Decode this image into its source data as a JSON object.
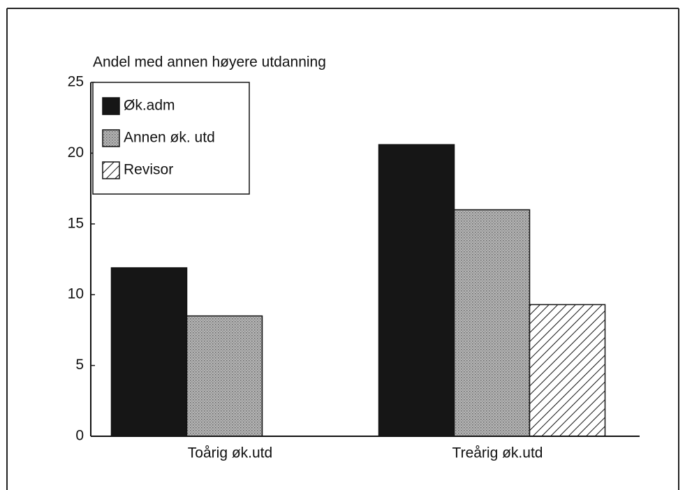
{
  "chart_data": {
    "type": "bar",
    "title": "Andel med annen høyere utdanning",
    "categories": [
      "Toårig øk.utd",
      "Treårig øk.utd"
    ],
    "series": [
      {
        "name": "Øk.adm",
        "color": "#161616",
        "values": [
          11.9,
          20.6
        ]
      },
      {
        "name": "Annen øk. utd",
        "color": "#a8a8a8",
        "pattern": "stipple",
        "values": [
          8.5,
          16.0
        ]
      },
      {
        "name": "Revisor",
        "color": "#ffffff",
        "pattern": "hatch",
        "values": [
          null,
          9.3
        ]
      }
    ],
    "ylim": [
      0,
      25
    ],
    "yticks": [
      0,
      5,
      10,
      15,
      20,
      25
    ],
    "grid": false,
    "legend": "top-left"
  }
}
